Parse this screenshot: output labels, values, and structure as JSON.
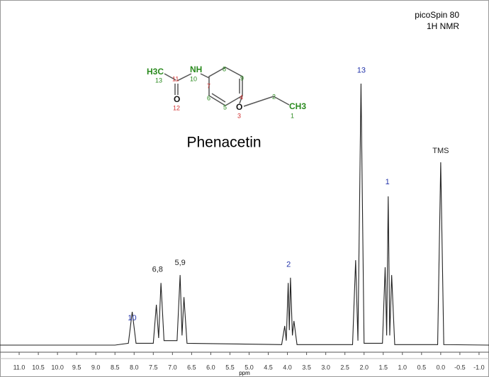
{
  "chart_data": {
    "type": "line",
    "title": "Phenacetin",
    "instrument": [
      "picoSpin 80",
      "1H NMR"
    ],
    "xlabel": "ppm",
    "color": "#222222",
    "annotation_color": "#2233aa",
    "x": [
      11.5,
      10.0,
      8.5,
      8.15,
      8.05,
      7.95,
      7.5,
      7.42,
      7.36,
      7.3,
      7.22,
      6.88,
      6.8,
      6.75,
      6.7,
      6.62,
      4.15,
      4.07,
      4.03,
      3.98,
      3.95,
      3.92,
      3.87,
      3.83,
      3.75,
      2.3,
      2.22,
      2.16,
      2.08,
      2.0,
      1.52,
      1.45,
      1.41,
      1.37,
      1.33,
      1.28,
      1.2,
      0.08,
      0.0,
      -0.08,
      -1.26
    ],
    "values": [
      0.3,
      0.3,
      0.3,
      1,
      13,
      1,
      1,
      15.7,
      3,
      24,
      2,
      2,
      27,
      4,
      18.6,
      1,
      0.5,
      7.6,
      2,
      24,
      6,
      26,
      4,
      9.5,
      0.5,
      0.5,
      32.7,
      2,
      100,
      1,
      1,
      30,
      4,
      57,
      4,
      27,
      0.5,
      0.5,
      70,
      0.5,
      0.3
    ],
    "xlim": [
      11.5,
      -1.26
    ],
    "ylim": [
      -2.4,
      131.9
    ],
    "xticks": [
      {
        "value": 11,
        "label": "11.0"
      },
      10.5,
      {
        "value": 10,
        "label": "10.0"
      },
      9.5,
      {
        "value": 9,
        "label": "9.0"
      },
      8.5,
      {
        "value": 8,
        "label": "8.0"
      },
      7.5,
      {
        "value": 7,
        "label": "7.0"
      },
      6.5,
      {
        "value": 6,
        "label": "6.0"
      },
      5.5,
      {
        "value": 5,
        "label": "5.0"
      },
      4.5,
      {
        "value": 4,
        "label": "4.0"
      },
      3.5,
      {
        "value": 3,
        "label": "3.0"
      },
      2.5,
      {
        "value": 2,
        "label": "2.0"
      },
      1.5,
      {
        "value": 1,
        "label": "1.0"
      },
      0.5,
      {
        "value": 0,
        "label": "0.0"
      },
      -0.5,
      {
        "value": -1,
        "label": "-1.0"
      }
    ],
    "annotations": [
      {
        "text": "10",
        "x": 8.05,
        "y": 10.5
      },
      {
        "text": "6,8",
        "x": 7.39,
        "y": 29
      },
      {
        "text": "5,9",
        "x": 6.8,
        "y": 31.6
      },
      {
        "text": "2",
        "x": 3.97,
        "y": 31
      },
      {
        "text": "13",
        "x": 2.07,
        "y": 105
      },
      {
        "text": "1",
        "x": 1.39,
        "y": 62.4
      },
      {
        "text": "TMS",
        "x": 0.0,
        "y": 74.3
      }
    ]
  },
  "structure": {
    "labels": [
      "H3C",
      "13",
      "NH",
      "10",
      "11",
      "O",
      "12",
      "7",
      "8",
      "9",
      "4",
      "5",
      "6",
      "O",
      "3",
      "2",
      "CH3",
      "1"
    ]
  }
}
